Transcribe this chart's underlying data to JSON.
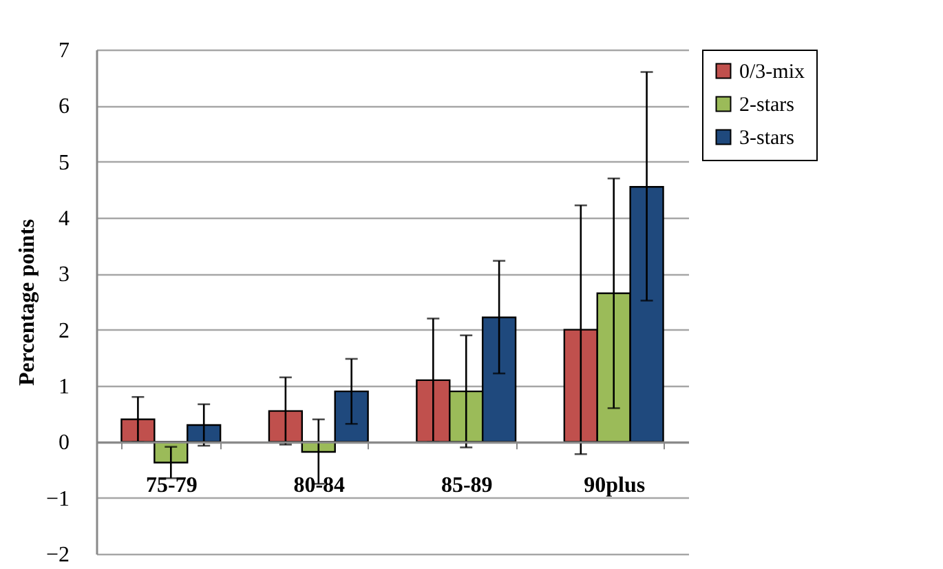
{
  "chart_data": {
    "type": "bar",
    "ylabel": "Percentage points",
    "categories": [
      "75-79",
      "80-84",
      "85-89",
      "90plus"
    ],
    "series": [
      {
        "name": "0/3-mix",
        "color": "#c0504d",
        "values": [
          0.4,
          0.55,
          1.1,
          2.0
        ],
        "errors": [
          [
            0.0,
            0.8
          ],
          [
            -0.05,
            1.15
          ],
          [
            0.0,
            2.2
          ],
          [
            -0.22,
            4.22
          ]
        ]
      },
      {
        "name": "2-stars",
        "color": "#9bbb59",
        "values": [
          -0.37,
          -0.18,
          0.9,
          2.65
        ],
        "errors": [
          [
            -0.65,
            -0.09
          ],
          [
            -0.75,
            0.4
          ],
          [
            -0.1,
            1.9
          ],
          [
            0.6,
            4.7
          ]
        ]
      },
      {
        "name": "3-stars",
        "color": "#1f497d",
        "values": [
          0.3,
          0.9,
          2.22,
          4.55
        ],
        "errors": [
          [
            -0.07,
            0.67
          ],
          [
            0.32,
            1.48
          ],
          [
            1.22,
            3.23
          ],
          [
            2.52,
            6.6
          ]
        ]
      }
    ],
    "ylim": [
      -2,
      7
    ],
    "yticks": [
      -2,
      -1,
      0,
      1,
      2,
      3,
      4,
      5,
      6,
      7
    ],
    "grid": "y",
    "legend": "right"
  }
}
